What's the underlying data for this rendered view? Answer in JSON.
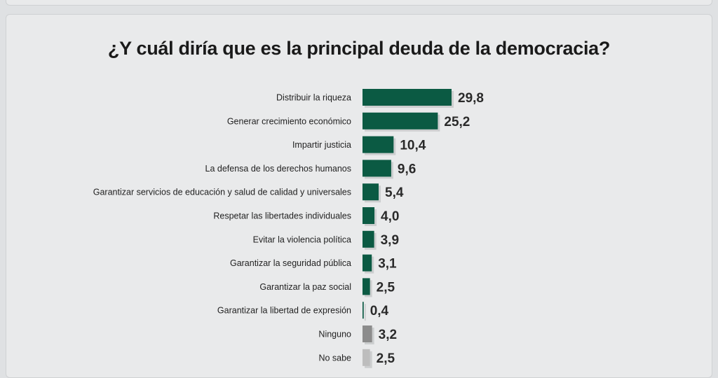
{
  "chart_data": {
    "type": "bar",
    "orientation": "horizontal",
    "title": "¿Y cuál diría que es la principal deuda de la democracia?",
    "categories": [
      "Distribuir la riqueza",
      "Generar crecimiento económico",
      "Impartir justicia",
      "La defensa de los derechos humanos",
      "Garantizar servicios de educación y salud de calidad y universales",
      "Respetar las libertades individuales",
      "Evitar la violencia política",
      "Garantizar la seguridad pública",
      "Garantizar la paz social",
      "Garantizar la libertad de expresión",
      "Ninguno",
      "No sabe"
    ],
    "values": [
      29.8,
      25.2,
      10.4,
      9.6,
      5.4,
      4.0,
      3.9,
      3.1,
      2.5,
      0.4,
      3.2,
      2.5
    ],
    "value_labels": [
      "29,8",
      "25,2",
      "10,4",
      "9,6",
      "5,4",
      "4,0",
      "3,9",
      "3,1",
      "2,5",
      "0,4",
      "3,2",
      "2,5"
    ],
    "colors": [
      "#0b5a43",
      "#0b5a43",
      "#0b5a43",
      "#0b5a43",
      "#0b5a43",
      "#0b5a43",
      "#0b5a43",
      "#0b5a43",
      "#0b5a43",
      "#0b5a43",
      "#8c8c8c",
      "#bdbdbd"
    ],
    "xlim": [
      0,
      30
    ],
    "grid": false,
    "legend": "none"
  }
}
